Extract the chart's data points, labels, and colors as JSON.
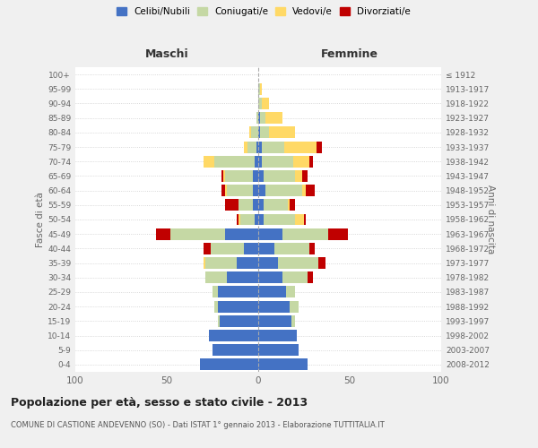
{
  "age_groups": [
    "0-4",
    "5-9",
    "10-14",
    "15-19",
    "20-24",
    "25-29",
    "30-34",
    "35-39",
    "40-44",
    "45-49",
    "50-54",
    "55-59",
    "60-64",
    "65-69",
    "70-74",
    "75-79",
    "80-84",
    "85-89",
    "90-94",
    "95-99",
    "100+"
  ],
  "birth_years": [
    "2008-2012",
    "2003-2007",
    "1998-2002",
    "1993-1997",
    "1988-1992",
    "1983-1987",
    "1978-1982",
    "1973-1977",
    "1968-1972",
    "1963-1967",
    "1958-1962",
    "1953-1957",
    "1948-1952",
    "1943-1947",
    "1938-1942",
    "1933-1937",
    "1928-1932",
    "1923-1927",
    "1918-1922",
    "1913-1917",
    "≤ 1912"
  ],
  "male": {
    "celibi": [
      32,
      25,
      27,
      21,
      22,
      22,
      17,
      12,
      8,
      18,
      2,
      3,
      3,
      3,
      2,
      1,
      0,
      0,
      0,
      0,
      0
    ],
    "coniugati": [
      0,
      0,
      0,
      1,
      2,
      3,
      12,
      17,
      18,
      30,
      8,
      8,
      14,
      15,
      22,
      5,
      4,
      1,
      0,
      0,
      0
    ],
    "vedovi": [
      0,
      0,
      0,
      0,
      0,
      0,
      0,
      1,
      0,
      0,
      1,
      0,
      1,
      1,
      6,
      2,
      1,
      0,
      0,
      0,
      0
    ],
    "divorziati": [
      0,
      0,
      0,
      0,
      0,
      0,
      0,
      0,
      4,
      8,
      1,
      7,
      2,
      1,
      0,
      0,
      0,
      0,
      0,
      0,
      0
    ]
  },
  "female": {
    "nubili": [
      27,
      22,
      21,
      18,
      17,
      15,
      13,
      11,
      9,
      13,
      3,
      3,
      4,
      3,
      2,
      2,
      1,
      1,
      0,
      0,
      0
    ],
    "coniugate": [
      0,
      0,
      0,
      2,
      5,
      5,
      14,
      22,
      19,
      25,
      17,
      13,
      20,
      17,
      17,
      12,
      5,
      3,
      2,
      1,
      0
    ],
    "vedove": [
      0,
      0,
      0,
      0,
      0,
      0,
      0,
      0,
      0,
      0,
      5,
      1,
      2,
      4,
      9,
      18,
      14,
      9,
      4,
      1,
      0
    ],
    "divorziate": [
      0,
      0,
      0,
      0,
      0,
      0,
      3,
      4,
      3,
      11,
      1,
      3,
      5,
      3,
      2,
      3,
      0,
      0,
      0,
      0,
      0
    ]
  },
  "color_celibi": "#4472c4",
  "color_coniugati": "#c5d8a4",
  "color_vedovi": "#ffd966",
  "color_divorziati": "#c00000",
  "xlim": 100,
  "title": "Popolazione per età, sesso e stato civile - 2013",
  "subtitle": "COMUNE DI CASTIONE ANDEVENNO (SO) - Dati ISTAT 1° gennaio 2013 - Elaborazione TUTTITALIA.IT",
  "ylabel": "Fasce di età",
  "ylabel2": "Anni di nascita",
  "xlabel_left": "Maschi",
  "xlabel_right": "Femmine",
  "bg_color": "#f0f0f0",
  "plot_bg": "#ffffff"
}
